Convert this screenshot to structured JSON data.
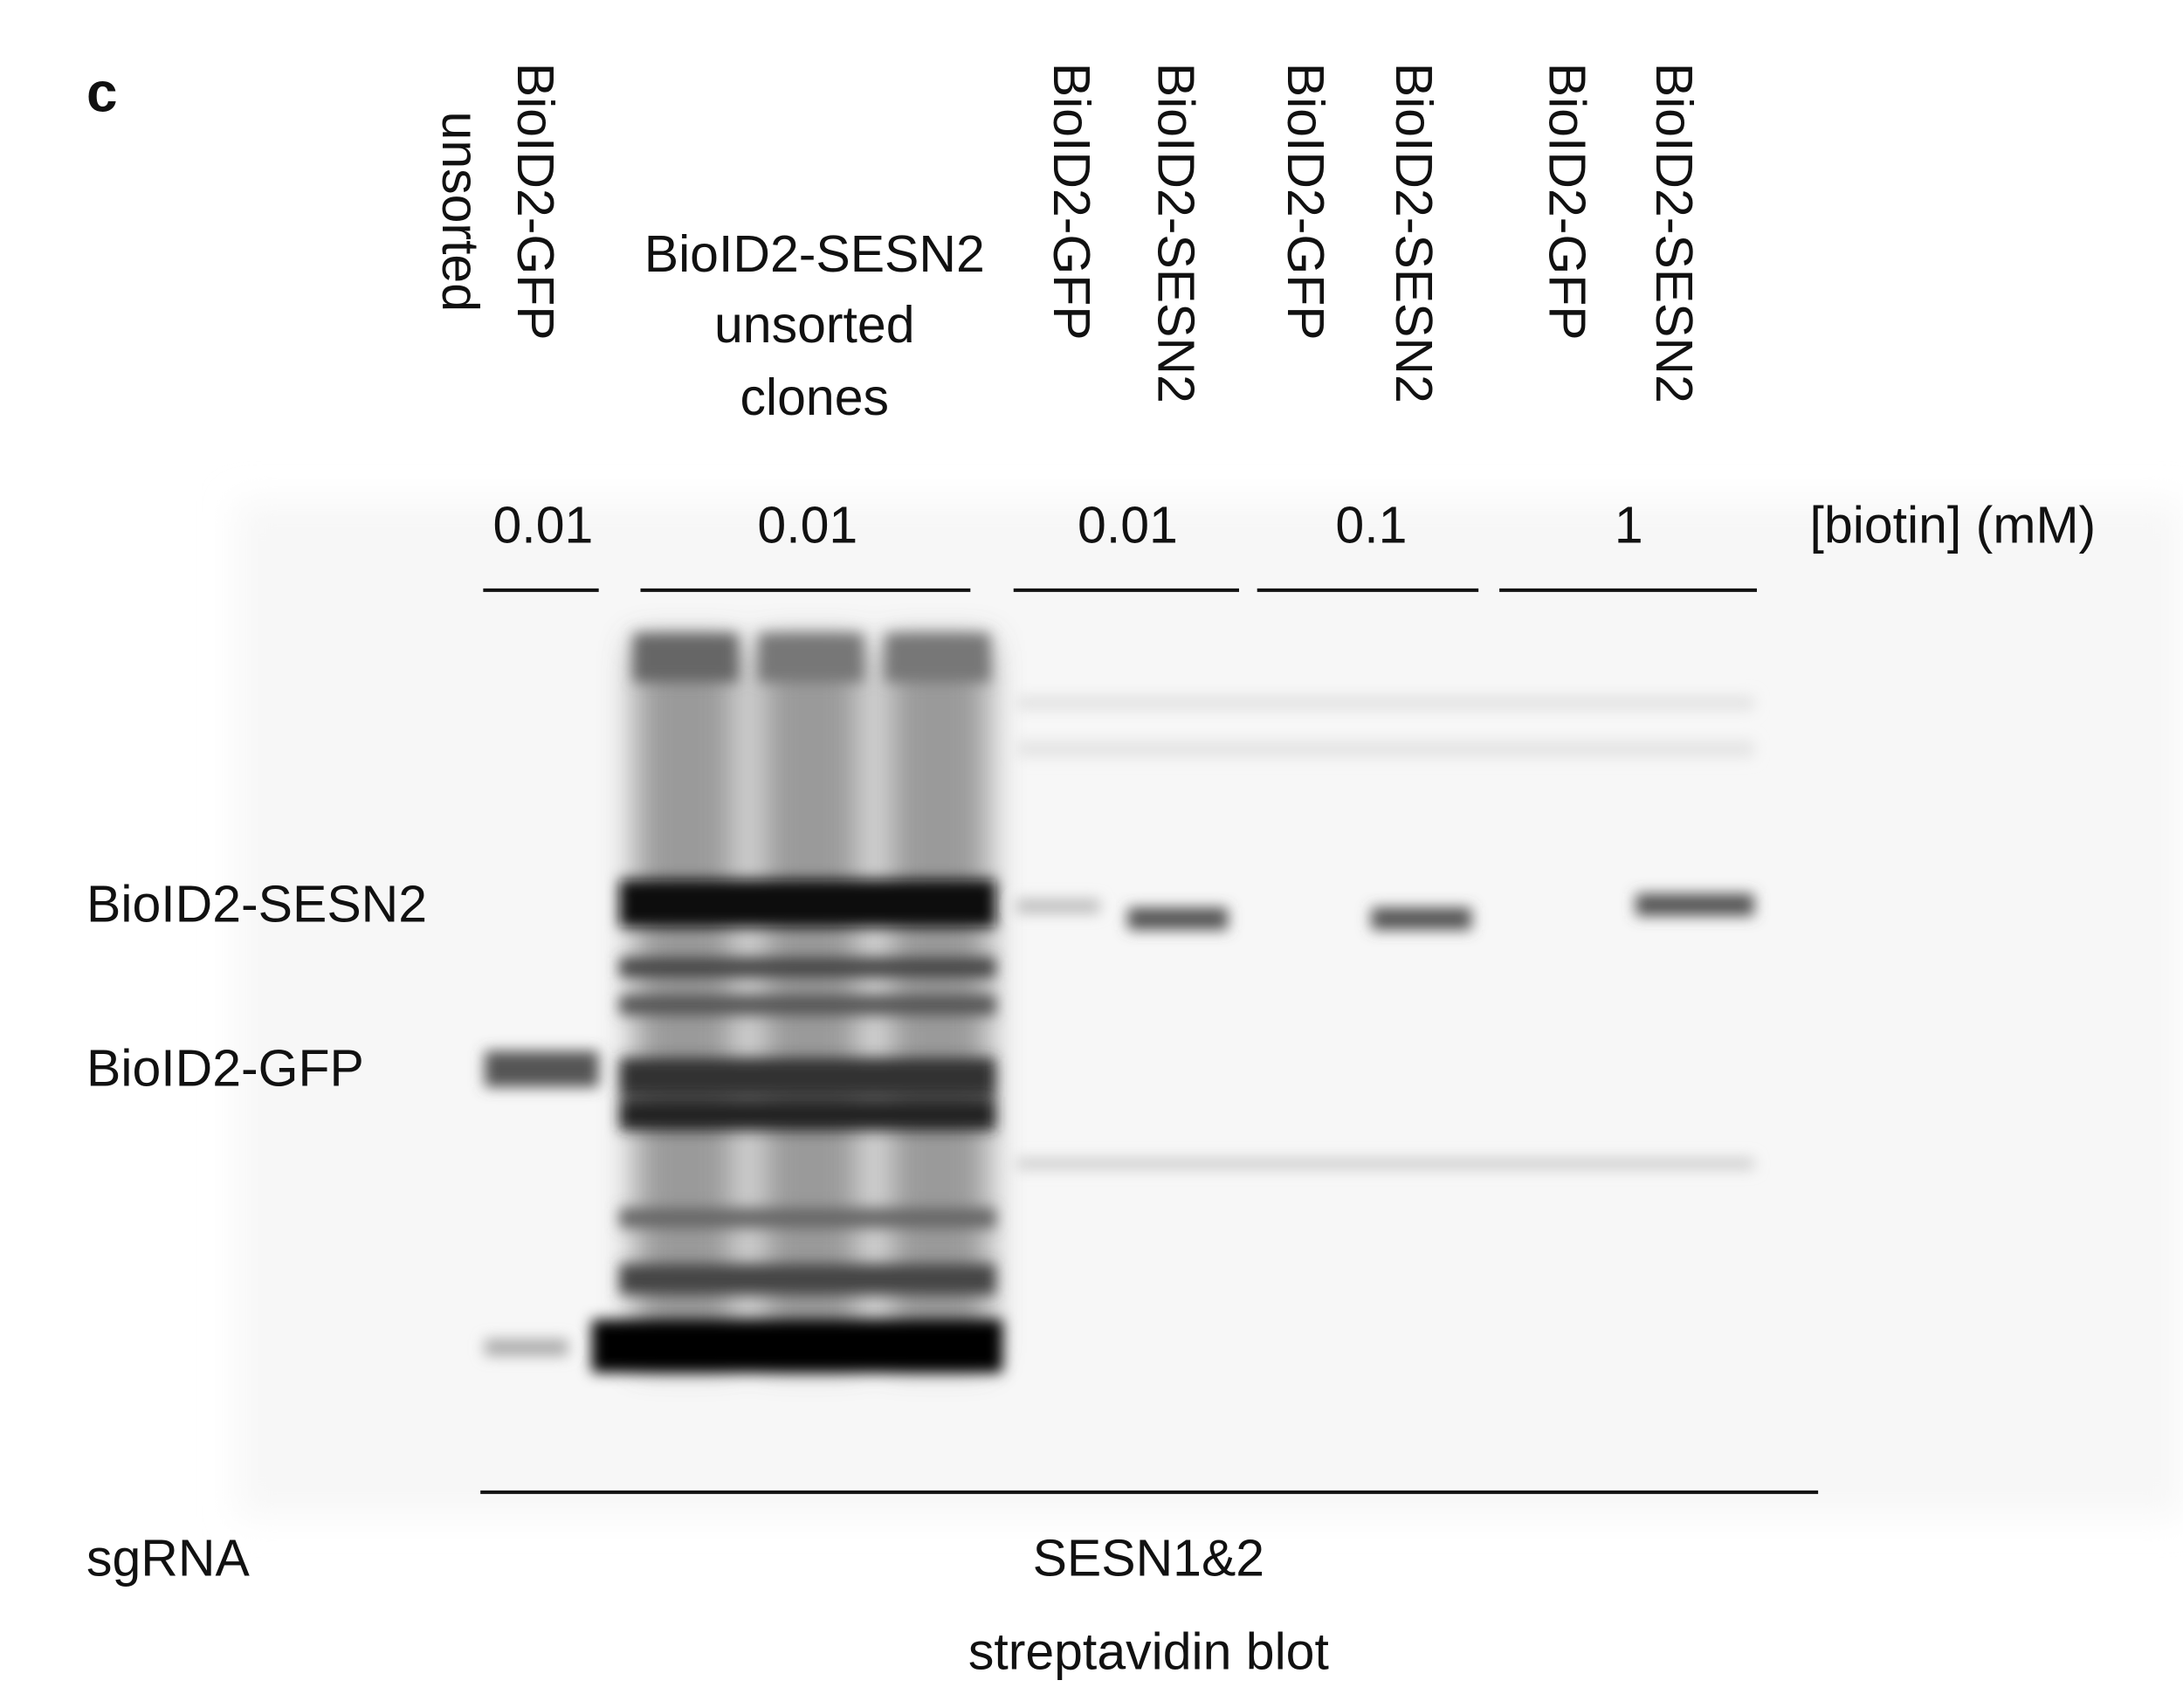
{
  "panel": "c",
  "lanes": {
    "unsorted_gfp": [
      "BioID2-GFP",
      "unsorted"
    ],
    "unsorted_clones": [
      "BioID2-SESN2",
      "unsorted",
      "clones"
    ],
    "rotated": [
      "BioID2-GFP",
      "BioID2-SESN2",
      "BioID2-GFP",
      "BioID2-SESN2",
      "BioID2-GFP",
      "BioID2-SESN2"
    ]
  },
  "biotin": {
    "groups": [
      "0.01",
      "0.01",
      "0.01",
      "0.1",
      "1"
    ],
    "label": "[biotin] (mM)"
  },
  "markers": [
    "BioID2-SESN2",
    "BioID2-GFP"
  ],
  "footer": {
    "sgrna_label": "sgRNA",
    "sgrna": "SESN1&2",
    "caption": "streptavidin blot"
  }
}
